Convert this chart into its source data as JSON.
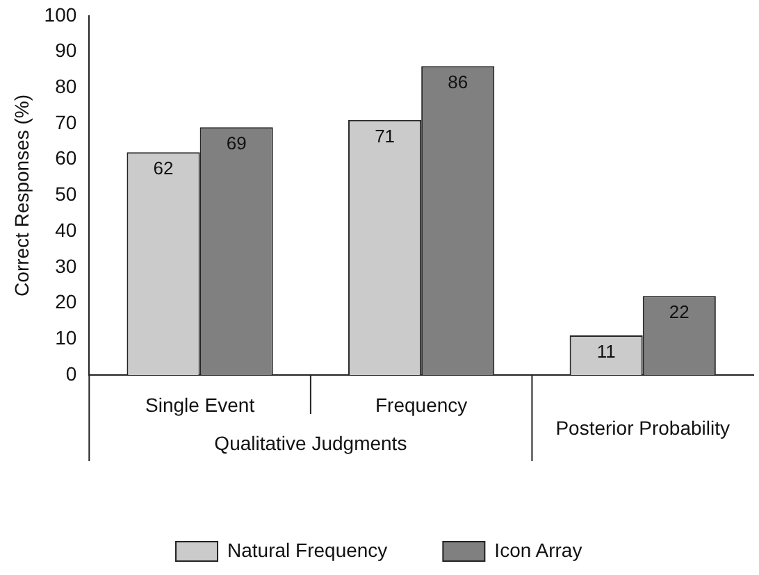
{
  "chart_data": {
    "type": "bar",
    "ylabel": "Correct Responses (%)",
    "categories": [
      "Single Event",
      "Frequency",
      "Posterior Probability"
    ],
    "annotations": [
      "Qualitative Judgments"
    ],
    "series": [
      {
        "name": "Natural Frequency",
        "color": "#cbcbcb",
        "values": [
          62,
          71,
          11
        ]
      },
      {
        "name": "Icon Array",
        "color": "#808080",
        "values": [
          69,
          86,
          22
        ]
      }
    ],
    "ylim": [
      0,
      100
    ],
    "yticks": [
      0,
      10,
      20,
      30,
      40,
      50,
      60,
      70,
      80,
      90,
      100
    ],
    "data_labels": true,
    "grid": false,
    "legend": "bottom"
  }
}
